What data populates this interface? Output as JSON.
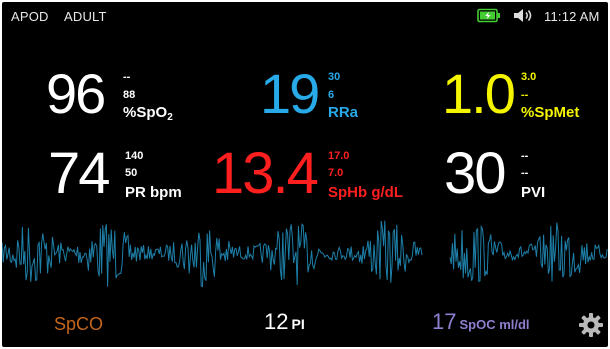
{
  "status_bar": {
    "mode": "APOD",
    "patient_type": "ADULT",
    "time": "11:12 AM",
    "icons": [
      "battery-charging-icon",
      "speaker-volume-icon"
    ]
  },
  "params": {
    "spo2": {
      "value": "96",
      "high": "--",
      "low": "88",
      "label": "%SpO",
      "label_sub": "2"
    },
    "rra": {
      "value": "19",
      "high": "30",
      "low": "6",
      "label": "RRa"
    },
    "spmet": {
      "value": "1.0",
      "high": "3.0",
      "low": "--",
      "label": "%SpMet"
    },
    "pr": {
      "value": "74",
      "high": "140",
      "low": "50",
      "label": "PR bpm"
    },
    "sphb": {
      "value": "13.4",
      "high": "17.0",
      "low": "7.0",
      "label": "SpHb g/dL"
    },
    "pvi": {
      "value": "30",
      "high": "--",
      "low": "--",
      "label": "PVI"
    }
  },
  "bottom_bar": {
    "spco_label": "SpCO",
    "pi_value": "12",
    "pi_label": "PI",
    "spoc_value": "17",
    "spoc_label": "SpOC ml/dl",
    "settings_icon": "gear-icon"
  },
  "colors": {
    "background": "#000000",
    "white": "#ffffff",
    "blue": "#28a9e8",
    "yellow": "#f5f500",
    "red": "#ff1f1f",
    "orange": "#c4651c",
    "purple": "#8f7fd0",
    "waveform": "#1e7fa8",
    "battery": "#44cc33"
  }
}
